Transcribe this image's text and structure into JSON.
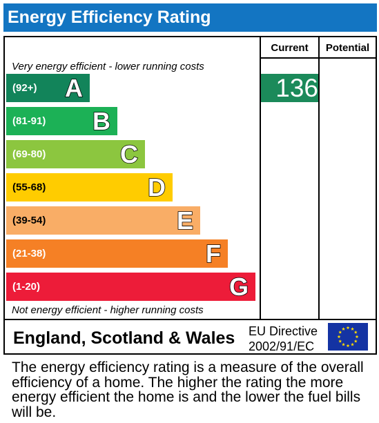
{
  "header": {
    "title": "Energy Efficiency Rating"
  },
  "columns": {
    "current": "Current",
    "potential": "Potential"
  },
  "chart_data": {
    "type": "bar",
    "title": "Energy Efficiency Rating",
    "top_note": "Very energy efficient - lower running costs",
    "bottom_note": "Not energy efficient - higher running costs",
    "bands": [
      {
        "letter": "A",
        "range": "(92+)",
        "color": "#12845a"
      },
      {
        "letter": "B",
        "range": "(81-91)",
        "color": "#1cb156"
      },
      {
        "letter": "C",
        "range": "(69-80)",
        "color": "#8cc63f"
      },
      {
        "letter": "D",
        "range": "(55-68)",
        "color": "#ffcc00"
      },
      {
        "letter": "E",
        "range": "(39-54)",
        "color": "#f9ad66"
      },
      {
        "letter": "F",
        "range": "(21-38)",
        "color": "#f58025"
      },
      {
        "letter": "G",
        "range": "(1-20)",
        "color": "#ed1c39"
      }
    ],
    "current": {
      "value": "136",
      "band": "A",
      "color": "#1b8a5a"
    },
    "potential": null
  },
  "footer": {
    "region": "England, Scotland & Wales",
    "directive_line1": "EU Directive",
    "directive_line2": "2002/91/EC",
    "flag": "eu-flag"
  },
  "caption": "The energy efficiency rating is a measure of the overall efficiency of a home. The higher the rating the more energy efficient the home is and the lower the fuel bills will be."
}
